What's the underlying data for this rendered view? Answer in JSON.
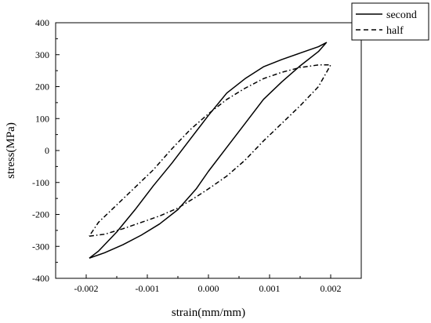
{
  "chart_data": {
    "type": "line",
    "title": "",
    "xlabel": "strain(mm/mm)",
    "ylabel": "stress(MPa)",
    "xlim": [
      -0.0025,
      0.0025
    ],
    "ylim": [
      -400,
      400
    ],
    "xticks": [
      -0.002,
      -0.001,
      0.0,
      0.001,
      0.002
    ],
    "xtick_labels": [
      "-0.002",
      "-0.001",
      "0.000",
      "0.001",
      "0.002"
    ],
    "yticks": [
      -400,
      -300,
      -200,
      -100,
      0,
      100,
      200,
      300,
      400
    ],
    "ytick_labels": [
      "-400",
      "-300",
      "-200",
      "-100",
      "0",
      "100",
      "200",
      "300",
      "400"
    ],
    "grid": false,
    "legend_position": "top-right",
    "series": [
      {
        "name": "second",
        "style": "solid",
        "color": "#000000",
        "points": [
          [
            -0.00195,
            -337
          ],
          [
            -0.0017,
            -320
          ],
          [
            -0.0014,
            -295
          ],
          [
            -0.0011,
            -265
          ],
          [
            -0.0008,
            -230
          ],
          [
            -0.0005,
            -185
          ],
          [
            -0.0002,
            -120
          ],
          [
            0.0,
            -65
          ],
          [
            0.0003,
            10
          ],
          [
            0.0006,
            85
          ],
          [
            0.0009,
            160
          ],
          [
            0.0012,
            215
          ],
          [
            0.0015,
            265
          ],
          [
            0.0018,
            310
          ],
          [
            0.00193,
            338
          ],
          [
            0.0018,
            325
          ],
          [
            0.0015,
            305
          ],
          [
            0.0012,
            285
          ],
          [
            0.0009,
            262
          ],
          [
            0.0006,
            225
          ],
          [
            0.0003,
            180
          ],
          [
            0.0,
            110
          ],
          [
            -0.0003,
            35
          ],
          [
            -0.0006,
            -40
          ],
          [
            -0.0009,
            -110
          ],
          [
            -0.0012,
            -185
          ],
          [
            -0.0015,
            -255
          ],
          [
            -0.0018,
            -315
          ],
          [
            -0.00195,
            -337
          ]
        ]
      },
      {
        "name": "half",
        "style": "dash",
        "color": "#000000",
        "points": [
          [
            -0.00195,
            -268
          ],
          [
            -0.0017,
            -262
          ],
          [
            -0.0014,
            -245
          ],
          [
            -0.0011,
            -225
          ],
          [
            -0.0008,
            -205
          ],
          [
            -0.0005,
            -180
          ],
          [
            -0.0002,
            -145
          ],
          [
            0.0,
            -120
          ],
          [
            0.0003,
            -80
          ],
          [
            0.0006,
            -30
          ],
          [
            0.0009,
            30
          ],
          [
            0.0012,
            85
          ],
          [
            0.0015,
            140
          ],
          [
            0.0018,
            200
          ],
          [
            0.002,
            268
          ],
          [
            0.0018,
            268
          ],
          [
            0.0015,
            260
          ],
          [
            0.0012,
            245
          ],
          [
            0.0009,
            225
          ],
          [
            0.0006,
            195
          ],
          [
            0.0003,
            160
          ],
          [
            0.0,
            115
          ],
          [
            -0.0003,
            65
          ],
          [
            -0.0006,
            5
          ],
          [
            -0.0009,
            -60
          ],
          [
            -0.0012,
            -115
          ],
          [
            -0.0015,
            -170
          ],
          [
            -0.0018,
            -225
          ],
          [
            -0.00195,
            -268
          ]
        ]
      }
    ]
  }
}
